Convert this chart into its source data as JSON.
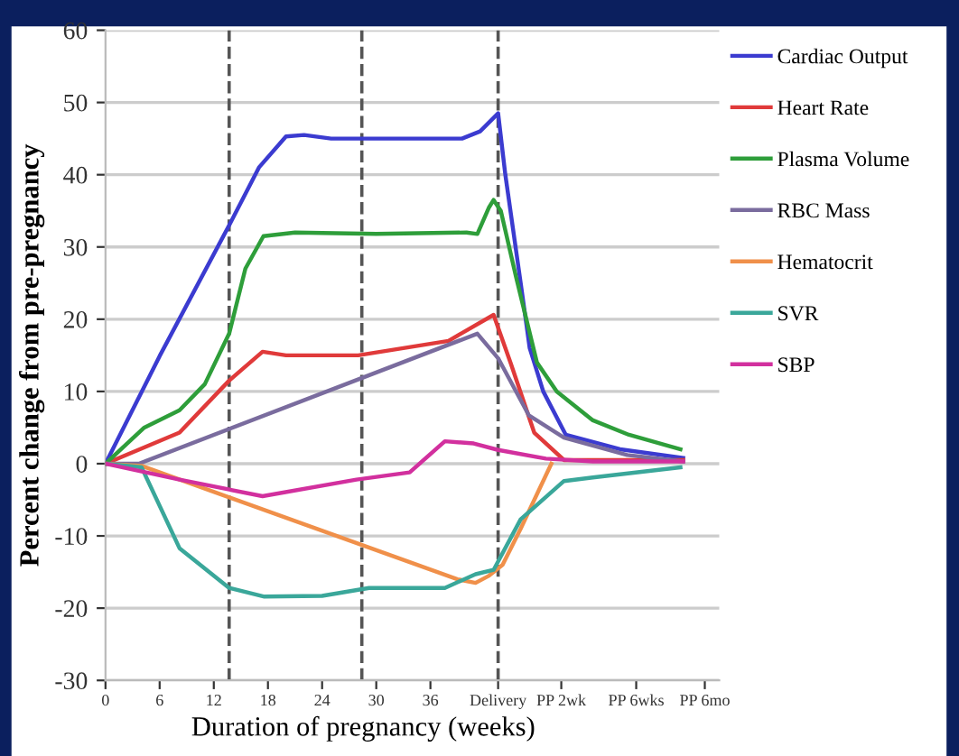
{
  "chart_data": {
    "type": "line",
    "xlabel": "Duration of pregnancy (weeks)",
    "ylabel": "Percent change from pre-pregnancy",
    "xlim": [
      0,
      68
    ],
    "xticks": [
      0,
      6,
      12,
      18,
      24,
      30,
      36,
      {
        "value": 43.5,
        "label": "Delivery"
      },
      {
        "value": 50.5,
        "label": "PP 2wk"
      },
      {
        "value": 58.8,
        "label": "PP 6wks"
      },
      {
        "value": 66.4,
        "label": "PP 6mo"
      }
    ],
    "ylim": [
      -30,
      60
    ],
    "yticks": [
      -30,
      -20,
      -10,
      0,
      10,
      20,
      30,
      40,
      50,
      60
    ],
    "grid": "y",
    "legend": "right",
    "marker": "none",
    "line_style": "solid",
    "ref_lines": [
      {
        "axis": "x",
        "value": 13.7,
        "color": "#555555",
        "line_style": "dashed"
      },
      {
        "axis": "x",
        "value": 28.4,
        "color": "#555555",
        "line_style": "dashed"
      },
      {
        "axis": "x",
        "value": 43.5,
        "color": "#555555",
        "line_style": "dashed"
      }
    ],
    "series": [
      {
        "name": "Cardiac Output",
        "color": "#3b3bd0",
        "x": [
          0,
          6,
          13.7,
          17,
          20,
          22,
          25,
          35,
          39.5,
          41.5,
          43.5,
          44.3,
          46,
          47,
          48.5,
          51,
          57,
          64
        ],
        "values": [
          0,
          14.9,
          33,
          41,
          45.3,
          45.5,
          45,
          45,
          45,
          46,
          48.5,
          40,
          25,
          16,
          10,
          4,
          2,
          0.8
        ]
      },
      {
        "name": "Heart Rate",
        "color": "#e03a3a",
        "x": [
          0,
          8.2,
          13.7,
          17.4,
          20,
          28,
          38,
          43,
          44.9,
          47.5,
          50.8,
          60,
          64
        ],
        "values": [
          0,
          4.3,
          11.5,
          15.5,
          15,
          15,
          17,
          20.6,
          13.9,
          4.3,
          0.5,
          0.5,
          0.5
        ]
      },
      {
        "name": "Plasma Volume",
        "color": "#2e9e3a",
        "x": [
          0,
          4.3,
          8.2,
          11,
          13.7,
          15.5,
          17.5,
          21,
          30,
          40,
          41.2,
          42.5,
          43,
          43.8,
          45.5,
          47.8,
          50,
          54,
          58,
          63.7
        ],
        "values": [
          0,
          5,
          7.4,
          11,
          18,
          27,
          31.5,
          32,
          31.8,
          32,
          31.8,
          35.5,
          36.5,
          35,
          25.8,
          14,
          10,
          6,
          4,
          2
        ]
      },
      {
        "name": "RBC Mass",
        "color": "#7a6c9e",
        "x": [
          0,
          3.7,
          41.2,
          43.5,
          46.9,
          50.8,
          57.8,
          64
        ],
        "values": [
          0,
          0,
          18,
          14.6,
          6.7,
          3.6,
          1.2,
          0.3
        ]
      },
      {
        "name": "Hematocrit",
        "color": "#f0904a",
        "x": [
          0,
          4,
          39,
          41,
          42.5,
          44,
          46,
          49.4
        ],
        "values": [
          0,
          -0.3,
          -16,
          -16.5,
          -15.5,
          -14,
          -9,
          0
        ]
      },
      {
        "name": "SVR",
        "color": "#3aa79a",
        "x": [
          0,
          4,
          8.2,
          13.7,
          17.6,
          24,
          29.2,
          37.6,
          41,
          43,
          46,
          50.8,
          54,
          63.7
        ],
        "values": [
          0,
          -0.5,
          -11.7,
          -17.2,
          -18.4,
          -18.3,
          -17.2,
          -17.2,
          -15.3,
          -14.7,
          -7.7,
          -2.4,
          -1.9,
          -0.5
        ]
      },
      {
        "name": "SBP",
        "color": "#d2309e",
        "x": [
          0,
          8.2,
          17.4,
          27.8,
          33.7,
          37.6,
          40.8,
          43.5,
          48.8,
          54,
          64
        ],
        "values": [
          0,
          -2.2,
          -4.5,
          -2.2,
          -1.2,
          3.1,
          2.8,
          1.9,
          0.7,
          0.3,
          0.3
        ]
      }
    ]
  }
}
